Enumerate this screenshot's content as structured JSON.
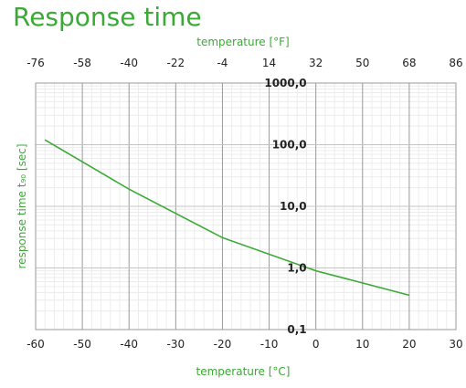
{
  "chart_data": {
    "type": "line",
    "title": "Response time",
    "xlabel_bottom": "temperature [°C]",
    "xlabel_top": "temperature [°F]",
    "ylabel": "response time t₉₀ [sec]",
    "x_ticks_bottom": [
      "-60",
      "-50",
      "-40",
      "-30",
      "-20",
      "-10",
      "0",
      "10",
      "20",
      "30"
    ],
    "x_ticks_top": [
      "-76",
      "-58",
      "-40",
      "-22",
      "-4",
      "14",
      "32",
      "50",
      "68",
      "86"
    ],
    "y_ticks": [
      "0,1",
      "1,0",
      "10,0",
      "100,0",
      "1000,0"
    ],
    "xlim": [
      -60,
      30
    ],
    "ylim": [
      0.1,
      1000
    ],
    "y_scale": "log",
    "grid": true,
    "series": [
      {
        "color": "#3aaa35",
        "x": [
          -58,
          -40,
          -20,
          0,
          20
        ],
        "y": [
          120,
          19,
          3.1,
          0.9,
          0.36
        ]
      }
    ]
  }
}
